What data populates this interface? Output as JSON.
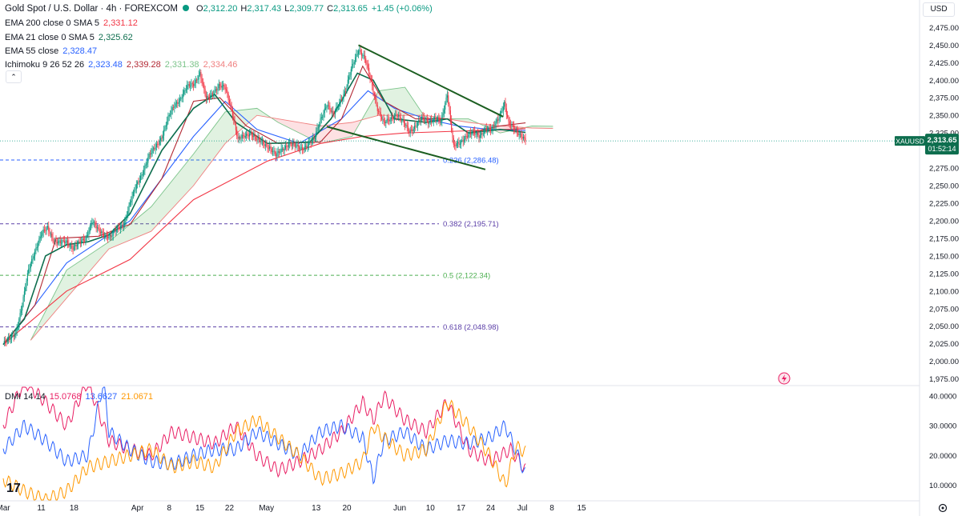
{
  "header": {
    "title": "Gold Spot / U.S. Dollar · 4h · FOREXCOM",
    "ohlc": [
      {
        "label": "O",
        "value": "2,312.20"
      },
      {
        "label": "H",
        "value": "2,317.43"
      },
      {
        "label": "L",
        "value": "2,309.77"
      },
      {
        "label": "C",
        "value": "2,313.65"
      }
    ],
    "change": "+1.45 (+0.06%)",
    "currency": "USD"
  },
  "indicators": [
    {
      "name": "EMA 200 close 0 SMA 5",
      "values": [
        "2,331.12"
      ],
      "colors": [
        "#f23645"
      ]
    },
    {
      "name": "EMA 21 close 0 SMA 5",
      "values": [
        "2,325.62"
      ],
      "colors": [
        "#0e6e4e"
      ]
    },
    {
      "name": "EMA 55 close",
      "values": [
        "2,328.47"
      ],
      "colors": [
        "#2962ff"
      ]
    },
    {
      "name": "Ichimoku 9 26 52 26",
      "values": [
        "2,323.48",
        "2,339.28",
        "2,331.38",
        "2,334.46"
      ],
      "colors": [
        "#2962ff",
        "#b22833",
        "#7cc48b",
        "#f08080"
      ]
    }
  ],
  "price_badge": {
    "symbol": "XAUUSD",
    "price": "2,313.65",
    "countdown": "01:52:14",
    "color": "#0e6e4e"
  },
  "dmi": {
    "label": "DMI 14 14",
    "values": [
      "15.0768",
      "13.6627",
      "21.0671"
    ],
    "colors": [
      "#e91e63",
      "#2962ff",
      "#ff9800"
    ]
  },
  "logo": "17",
  "chart_data": [
    {
      "type": "candlestick",
      "symbol": "XAUUSD",
      "timeframe": "4h",
      "ylim": [
        1970,
        2480
      ],
      "y_ticks": [
        "1,975.00",
        "2,000.00",
        "2,025.00",
        "2,050.00",
        "2,075.00",
        "2,100.00",
        "2,125.00",
        "2,150.00",
        "2,175.00",
        "2,200.00",
        "2,225.00",
        "2,250.00",
        "2,275.00",
        "2,300.00",
        "2,325.00",
        "2,350.00",
        "2,375.00",
        "2,400.00",
        "2,425.00",
        "2,450.00",
        "2,475.00"
      ],
      "x_ticks": [
        "Mar",
        "11",
        "18",
        "Apr",
        "8",
        "15",
        "22",
        "May",
        "13",
        "20",
        "Jun",
        "10",
        "17",
        "24",
        "Jul",
        "8",
        "15"
      ],
      "x_tick_bars": [
        0,
        36,
        67,
        127,
        157,
        186,
        214,
        249,
        296,
        325,
        375,
        404,
        433,
        461,
        491,
        519,
        547
      ],
      "close_path": [
        [
          0,
          2025
        ],
        [
          6,
          2031
        ],
        [
          12,
          2042
        ],
        [
          18,
          2080
        ],
        [
          24,
          2130
        ],
        [
          30,
          2158
        ],
        [
          36,
          2180
        ],
        [
          42,
          2190
        ],
        [
          48,
          2172
        ],
        [
          54,
          2168
        ],
        [
          60,
          2170
        ],
        [
          66,
          2162
        ],
        [
          72,
          2168
        ],
        [
          78,
          2175
        ],
        [
          84,
          2200
        ],
        [
          90,
          2185
        ],
        [
          96,
          2180
        ],
        [
          102,
          2178
        ],
        [
          108,
          2188
        ],
        [
          114,
          2196
        ],
        [
          120,
          2225
        ],
        [
          126,
          2250
        ],
        [
          132,
          2270
        ],
        [
          138,
          2292
        ],
        [
          144,
          2305
        ],
        [
          150,
          2320
        ],
        [
          156,
          2345
        ],
        [
          162,
          2365
        ],
        [
          168,
          2375
        ],
        [
          174,
          2390
        ],
        [
          180,
          2395
        ],
        [
          186,
          2410
        ],
        [
          192,
          2372
        ],
        [
          198,
          2382
        ],
        [
          204,
          2392
        ],
        [
          210,
          2388
        ],
        [
          216,
          2360
        ],
        [
          222,
          2315
        ],
        [
          228,
          2320
        ],
        [
          234,
          2326
        ],
        [
          240,
          2315
        ],
        [
          246,
          2310
        ],
        [
          252,
          2305
        ],
        [
          258,
          2292
        ],
        [
          264,
          2302
        ],
        [
          270,
          2310
        ],
        [
          276,
          2306
        ],
        [
          282,
          2303
        ],
        [
          288,
          2308
        ],
        [
          294,
          2315
        ],
        [
          300,
          2345
        ],
        [
          306,
          2365
        ],
        [
          312,
          2350
        ],
        [
          318,
          2370
        ],
        [
          324,
          2385
        ],
        [
          330,
          2420
        ],
        [
          336,
          2445
        ],
        [
          342,
          2430
        ],
        [
          348,
          2398
        ],
        [
          354,
          2360
        ],
        [
          360,
          2338
        ],
        [
          366,
          2345
        ],
        [
          372,
          2352
        ],
        [
          378,
          2340
        ],
        [
          384,
          2328
        ],
        [
          390,
          2335
        ],
        [
          396,
          2345
        ],
        [
          402,
          2342
        ],
        [
          408,
          2345
        ],
        [
          414,
          2340
        ],
        [
          420,
          2382
        ],
        [
          426,
          2305
        ],
        [
          432,
          2310
        ],
        [
          438,
          2322
        ],
        [
          444,
          2325
        ],
        [
          450,
          2320
        ],
        [
          456,
          2332
        ],
        [
          462,
          2328
        ],
        [
          468,
          2345
        ],
        [
          474,
          2368
        ],
        [
          478,
          2338
        ],
        [
          484,
          2330
        ],
        [
          490,
          2322
        ],
        [
          494,
          2313.65
        ]
      ],
      "ema200": [
        [
          0,
          2024
        ],
        [
          60,
          2100
        ],
        [
          120,
          2145
        ],
        [
          180,
          2230
        ],
        [
          250,
          2285
        ],
        [
          300,
          2310
        ],
        [
          340,
          2320
        ],
        [
          380,
          2325
        ],
        [
          440,
          2328
        ],
        [
          494,
          2331.12
        ]
      ],
      "ema21": [
        [
          0,
          2024
        ],
        [
          20,
          2060
        ],
        [
          40,
          2150
        ],
        [
          60,
          2166
        ],
        [
          80,
          2170
        ],
        [
          100,
          2180
        ],
        [
          120,
          2210
        ],
        [
          150,
          2300
        ],
        [
          180,
          2360
        ],
        [
          200,
          2380
        ],
        [
          220,
          2340
        ],
        [
          250,
          2310
        ],
        [
          290,
          2312
        ],
        [
          310,
          2345
        ],
        [
          335,
          2410
        ],
        [
          350,
          2400
        ],
        [
          370,
          2345
        ],
        [
          400,
          2340
        ],
        [
          420,
          2345
        ],
        [
          440,
          2325
        ],
        [
          470,
          2330
        ],
        [
          494,
          2325.62
        ]
      ],
      "ema55": [
        [
          0,
          2024
        ],
        [
          30,
          2080
        ],
        [
          60,
          2140
        ],
        [
          90,
          2170
        ],
        [
          120,
          2200
        ],
        [
          150,
          2260
        ],
        [
          180,
          2320
        ],
        [
          210,
          2370
        ],
        [
          240,
          2330
        ],
        [
          280,
          2310
        ],
        [
          320,
          2345
        ],
        [
          345,
          2385
        ],
        [
          370,
          2360
        ],
        [
          400,
          2345
        ],
        [
          430,
          2335
        ],
        [
          460,
          2330
        ],
        [
          494,
          2328.47
        ]
      ],
      "kijun": [
        [
          0,
          2024
        ],
        [
          30,
          2080
        ],
        [
          50,
          2175
        ],
        [
          90,
          2178
        ],
        [
          120,
          2195
        ],
        [
          150,
          2260
        ],
        [
          180,
          2370
        ],
        [
          205,
          2375
        ],
        [
          230,
          2335
        ],
        [
          260,
          2310
        ],
        [
          300,
          2312
        ],
        [
          320,
          2345
        ],
        [
          340,
          2420
        ],
        [
          360,
          2370
        ],
        [
          390,
          2345
        ],
        [
          420,
          2345
        ],
        [
          440,
          2325
        ],
        [
          470,
          2335
        ],
        [
          494,
          2339.28
        ]
      ],
      "span_a": [
        [
          26,
          2030
        ],
        [
          60,
          2130
        ],
        [
          100,
          2170
        ],
        [
          140,
          2220
        ],
        [
          180,
          2295
        ],
        [
          210,
          2355
        ],
        [
          240,
          2360
        ],
        [
          260,
          2340
        ],
        [
          300,
          2310
        ],
        [
          330,
          2320
        ],
        [
          355,
          2385
        ],
        [
          380,
          2390
        ],
        [
          400,
          2345
        ],
        [
          440,
          2345
        ],
        [
          470,
          2325
        ],
        [
          500,
          2335
        ],
        [
          520,
          2334.46
        ]
      ],
      "span_b": [
        [
          26,
          2030
        ],
        [
          60,
          2090
        ],
        [
          100,
          2160
        ],
        [
          140,
          2185
        ],
        [
          180,
          2250
        ],
        [
          210,
          2310
        ],
        [
          240,
          2350
        ],
        [
          260,
          2345
        ],
        [
          300,
          2335
        ],
        [
          330,
          2340
        ],
        [
          355,
          2350
        ],
        [
          380,
          2350
        ],
        [
          400,
          2350
        ],
        [
          440,
          2340
        ],
        [
          470,
          2335
        ],
        [
          500,
          2332
        ],
        [
          520,
          2331.38
        ]
      ],
      "trendlines": [
        {
          "from": [
            336,
            2450
          ],
          "to": [
            473,
            2348
          ]
        },
        {
          "from": [
            306,
            2334
          ],
          "to": [
            456,
            2273
          ]
        }
      ],
      "fibonacci": [
        {
          "level": 0.236,
          "value": 2286.48,
          "label": "0.236 (2,286.48)",
          "color": "#2962ff"
        },
        {
          "level": 0.382,
          "value": 2195.71,
          "label": "0.382 (2,195.71)",
          "color": "#5c40a8"
        },
        {
          "level": 0.5,
          "value": 2122.34,
          "label": "0.5 (2,122.34)",
          "color": "#4caf50"
        },
        {
          "level": 0.618,
          "value": 2048.98,
          "label": "0.618 (2,048.98)",
          "color": "#5c40a8"
        }
      ],
      "last_price": 2313.65
    },
    {
      "type": "line",
      "indicator": "DMI 14 14",
      "ylim": [
        5,
        43
      ],
      "y_ticks": [
        "10.0000",
        "20.0000",
        "30.0000",
        "40.0000"
      ],
      "series": [
        {
          "name": "+DI",
          "color": "#e91e63",
          "points": [
            [
              0,
              30
            ],
            [
              20,
              45
            ],
            [
              40,
              38
            ],
            [
              60,
              30
            ],
            [
              80,
              45
            ],
            [
              100,
              25
            ],
            [
              120,
              22
            ],
            [
              140,
              20
            ],
            [
              160,
              28
            ],
            [
              180,
              26
            ],
            [
              200,
              24
            ],
            [
              220,
              30
            ],
            [
              240,
              20
            ],
            [
              260,
              15
            ],
            [
              280,
              18
            ],
            [
              300,
              22
            ],
            [
              320,
              28
            ],
            [
              340,
              38
            ],
            [
              350,
              32
            ],
            [
              360,
              40
            ],
            [
              380,
              32
            ],
            [
              400,
              28
            ],
            [
              420,
              38
            ],
            [
              440,
              22
            ],
            [
              460,
              18
            ],
            [
              480,
              22
            ],
            [
              494,
              15.0768
            ]
          ]
        },
        {
          "name": "-DI",
          "color": "#2962ff",
          "points": [
            [
              0,
              22
            ],
            [
              20,
              30
            ],
            [
              40,
              25
            ],
            [
              60,
              18
            ],
            [
              80,
              20
            ],
            [
              95,
              45
            ],
            [
              100,
              28
            ],
            [
              120,
              22
            ],
            [
              140,
              18
            ],
            [
              160,
              17
            ],
            [
              180,
              20
            ],
            [
              200,
              22
            ],
            [
              220,
              22
            ],
            [
              240,
              28
            ],
            [
              260,
              24
            ],
            [
              280,
              20
            ],
            [
              300,
              28
            ],
            [
              320,
              30
            ],
            [
              340,
              26
            ],
            [
              350,
              12
            ],
            [
              360,
              25
            ],
            [
              380,
              28
            ],
            [
              400,
              22
            ],
            [
              420,
              25
            ],
            [
              440,
              24
            ],
            [
              460,
              26
            ],
            [
              475,
              30
            ],
            [
              494,
              13.6627
            ]
          ]
        },
        {
          "name": "ADX",
          "color": "#ff9800",
          "points": [
            [
              0,
              12
            ],
            [
              20,
              8
            ],
            [
              40,
              5
            ],
            [
              60,
              8
            ],
            [
              80,
              16
            ],
            [
              100,
              18
            ],
            [
              120,
              20
            ],
            [
              140,
              22
            ],
            [
              160,
              16
            ],
            [
              180,
              18
            ],
            [
              200,
              16
            ],
            [
              220,
              28
            ],
            [
              240,
              32
            ],
            [
              260,
              26
            ],
            [
              280,
              20
            ],
            [
              300,
              12
            ],
            [
              320,
              14
            ],
            [
              340,
              18
            ],
            [
              350,
              30
            ],
            [
              360,
              26
            ],
            [
              380,
              20
            ],
            [
              400,
              22
            ],
            [
              420,
              38
            ],
            [
              440,
              30
            ],
            [
              460,
              20
            ],
            [
              475,
              10
            ],
            [
              485,
              23
            ],
            [
              494,
              21.0671
            ]
          ]
        }
      ]
    }
  ]
}
